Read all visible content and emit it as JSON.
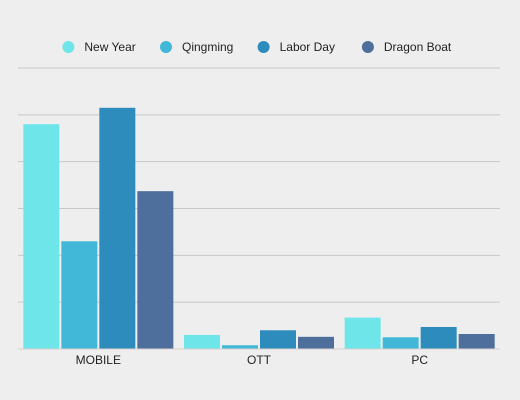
{
  "chart_data": {
    "type": "bar",
    "title": "",
    "xlabel": "",
    "ylabel": "",
    "categories": [
      "MOBILE",
      "OTT",
      "PC"
    ],
    "series": [
      {
        "name": "New Year",
        "color": "#6ee5e9",
        "values": [
          4.8,
          0.3,
          0.67
        ]
      },
      {
        "name": "Qingming",
        "color": "#42b8d8",
        "values": [
          2.3,
          0.08,
          0.25
        ]
      },
      {
        "name": "Labor Day",
        "color": "#2e8cbc",
        "values": [
          5.15,
          0.4,
          0.47
        ]
      },
      {
        "name": "Dragon Boat",
        "color": "#4e6e9c",
        "values": [
          3.37,
          0.26,
          0.32
        ]
      }
    ],
    "ylim": [
      0,
      6
    ],
    "yticks": [
      0,
      1,
      2,
      3,
      4,
      5,
      6
    ],
    "show_ytick_labels": false,
    "grid": true,
    "legend_position": "top"
  }
}
